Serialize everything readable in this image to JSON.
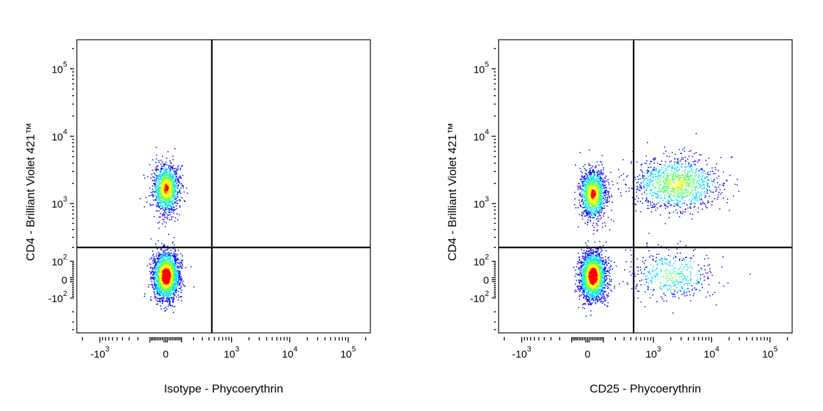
{
  "chart_data": [
    {
      "type": "scatter",
      "subtype": "flow-cytometry-density-dot-plot",
      "xlabel": "Isotype - Phycoerythrin",
      "ylabel": "CD4 - Brilliant Violet 421™",
      "x_scale": "biexponential",
      "y_scale": "biexponential",
      "x_ticks": [
        {
          "base": "-10",
          "exp": "3",
          "value": -1000
        },
        {
          "base": "0",
          "exp": "",
          "value": 0
        },
        {
          "base": "10",
          "exp": "3",
          "value": 1000
        },
        {
          "base": "10",
          "exp": "4",
          "value": 10000
        },
        {
          "base": "10",
          "exp": "5",
          "value": 100000
        }
      ],
      "y_ticks": [
        {
          "base": "10",
          "exp": "5",
          "value": 100000
        },
        {
          "base": "10",
          "exp": "4",
          "value": 10000
        },
        {
          "base": "10",
          "exp": "3",
          "value": 1000
        },
        {
          "base": "10",
          "exp": "2",
          "value": 100
        },
        {
          "base": "0",
          "exp": "",
          "value": 0
        },
        {
          "base": "-10",
          "exp": "2",
          "value": -100
        }
      ],
      "quadrant_gate": {
        "x": 450,
        "y": 200
      },
      "populations": [
        {
          "x_center": 0,
          "y_center": 1700,
          "spread": "tight",
          "density": "high"
        },
        {
          "x_center": 0,
          "y_center": 20,
          "spread": "tight",
          "density": "very-high"
        }
      ],
      "grid": false,
      "legend": "none"
    },
    {
      "type": "scatter",
      "subtype": "flow-cytometry-density-dot-plot",
      "xlabel": "CD25 - Phycoerythrin",
      "ylabel": "CD4 - Brilliant Violet 421™",
      "x_scale": "biexponential",
      "y_scale": "biexponential",
      "x_ticks": [
        {
          "base": "-10",
          "exp": "3",
          "value": -1000
        },
        {
          "base": "0",
          "exp": "",
          "value": 0
        },
        {
          "base": "10",
          "exp": "3",
          "value": 1000
        },
        {
          "base": "10",
          "exp": "4",
          "value": 10000
        },
        {
          "base": "10",
          "exp": "5",
          "value": 100000
        }
      ],
      "y_ticks": [
        {
          "base": "10",
          "exp": "5",
          "value": 100000
        },
        {
          "base": "10",
          "exp": "4",
          "value": 10000
        },
        {
          "base": "10",
          "exp": "3",
          "value": 1000
        },
        {
          "base": "10",
          "exp": "2",
          "value": 100
        },
        {
          "base": "0",
          "exp": "",
          "value": 0
        },
        {
          "base": "-10",
          "exp": "2",
          "value": -100
        }
      ],
      "quadrant_gate": {
        "x": 450,
        "y": 200
      },
      "populations": [
        {
          "x_center": 30,
          "y_center": 1400,
          "spread": "tight",
          "density": "high"
        },
        {
          "x_center": 2500,
          "y_center": 2000,
          "spread": "wide",
          "density": "medium"
        },
        {
          "x_center": 30,
          "y_center": 20,
          "spread": "tight",
          "density": "very-high"
        },
        {
          "x_center": 2000,
          "y_center": 25,
          "spread": "wide",
          "density": "low"
        }
      ],
      "grid": false,
      "legend": "none"
    }
  ],
  "colors": {
    "axis": "#000000",
    "density_low": "#0000ff",
    "density_mid": "#00e0ff",
    "density_midhigh": "#60ff60",
    "density_high": "#ffff00",
    "density_peak": "#ff0000"
  }
}
